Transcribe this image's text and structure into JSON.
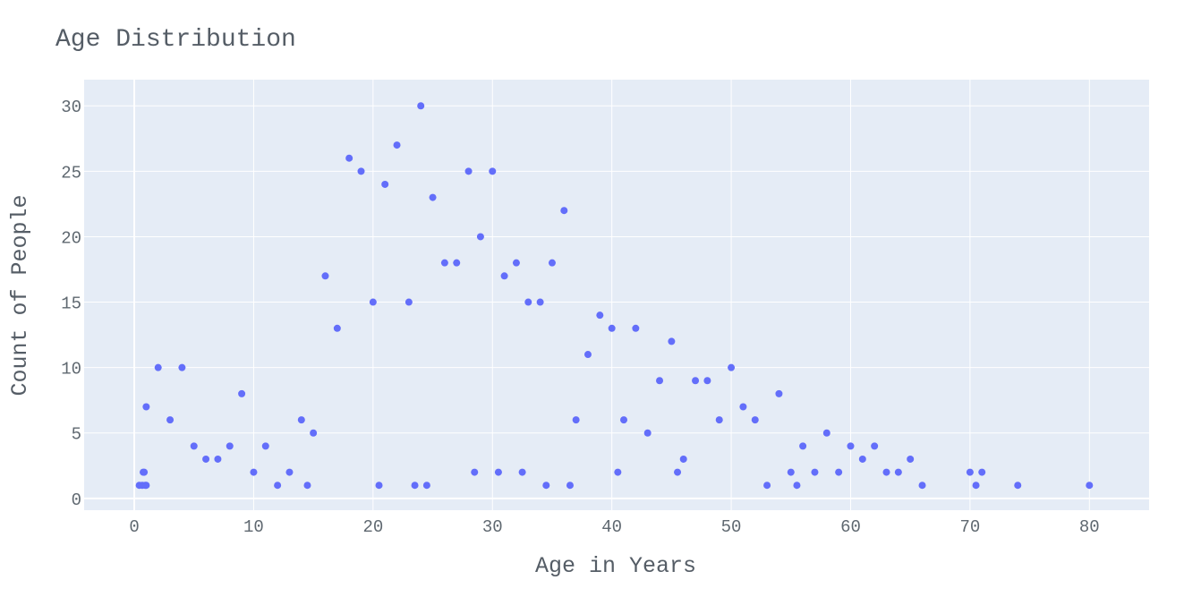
{
  "chart_data": {
    "type": "scatter",
    "title": "Age Distribution",
    "xlabel": "Age in Years",
    "ylabel": "Count of People",
    "xlim": [
      -4.2,
      85
    ],
    "ylim": [
      -0.9,
      32
    ],
    "xticks": [
      0,
      10,
      20,
      30,
      40,
      50,
      60,
      70,
      80
    ],
    "yticks": [
      0,
      5,
      10,
      15,
      20,
      25,
      30
    ],
    "grid": true,
    "legend": "none",
    "colors": {
      "marker": "#636efa",
      "plot_bg": "#e5ecf6",
      "grid": "#ffffff",
      "text": "#5f6870"
    },
    "x": [
      0.42,
      0.67,
      0.75,
      0.83,
      0.92,
      1,
      1,
      2,
      3,
      4,
      5,
      6,
      7,
      8,
      9,
      10,
      11,
      12,
      13,
      14,
      14.5,
      15,
      16,
      17,
      18,
      19,
      20,
      20.5,
      21,
      22,
      23,
      23.5,
      24,
      24.5,
      25,
      26,
      27,
      28,
      28.5,
      29,
      30,
      30.5,
      31,
      32,
      32.5,
      33,
      34,
      34.5,
      35,
      36,
      36.5,
      37,
      38,
      39,
      40,
      40.5,
      41,
      42,
      43,
      44,
      45,
      45.5,
      46,
      47,
      48,
      49,
      50,
      51,
      52,
      53,
      54,
      55,
      55.5,
      56,
      57,
      58,
      59,
      60,
      61,
      62,
      63,
      64,
      65,
      66,
      70,
      70.5,
      71,
      74,
      80
    ],
    "y": [
      1,
      1,
      2,
      2,
      1,
      7,
      1,
      10,
      6,
      10,
      4,
      3,
      3,
      4,
      8,
      2,
      4,
      1,
      2,
      6,
      1,
      5,
      17,
      13,
      26,
      25,
      15,
      1,
      24,
      27,
      15,
      1,
      30,
      1,
      23,
      18,
      18,
      25,
      2,
      20,
      25,
      2,
      17,
      18,
      2,
      15,
      15,
      1,
      18,
      22,
      1,
      6,
      11,
      14,
      13,
      2,
      6,
      13,
      5,
      9,
      12,
      2,
      3,
      9,
      9,
      6,
      10,
      7,
      6,
      1,
      8,
      2,
      1,
      4,
      2,
      5,
      2,
      4,
      3,
      4,
      2,
      2,
      3,
      1,
      2,
      1,
      2,
      1,
      1
    ]
  }
}
